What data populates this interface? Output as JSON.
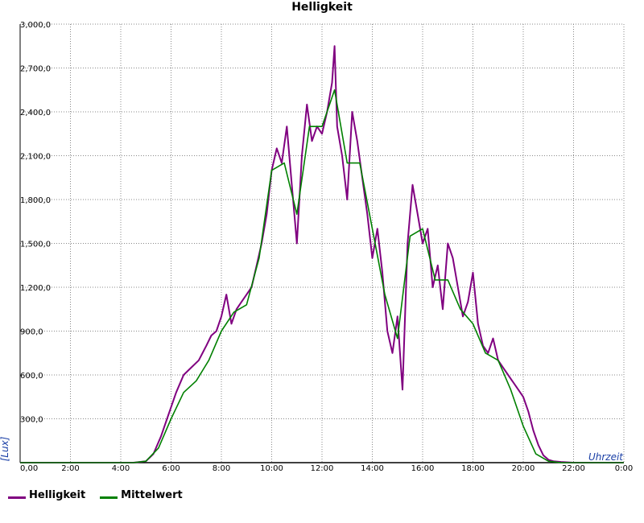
{
  "chart_data": {
    "type": "line",
    "title": "Helligkeit",
    "ylabel": "[Lux]",
    "xlabel": "Uhrzeit",
    "x_unit": "hours",
    "xlim": [
      0,
      24
    ],
    "ylim": [
      0,
      3000
    ],
    "x_ticks": [
      "0,00",
      "2:00",
      "4:00",
      "6:00",
      "8:00",
      "10:00",
      "12:00",
      "14:00",
      "16:00",
      "18:00",
      "20:00",
      "22:00",
      "0:00"
    ],
    "y_ticks": [
      "0,00",
      "300,0",
      "600,0",
      "900,0",
      "1,200,0",
      "1,500,0",
      "1,800,0",
      "2,100,0",
      "2,400,0",
      "2,700,0",
      "3,000,0"
    ],
    "grid": true,
    "legend_position": "bottom-left",
    "series": [
      {
        "name": "Helligkeit",
        "color": "#800080",
        "x": [
          0,
          4.5,
          5.0,
          5.3,
          5.6,
          5.9,
          6.2,
          6.5,
          6.8,
          7.1,
          7.4,
          7.6,
          7.8,
          8.0,
          8.2,
          8.4,
          8.6,
          8.8,
          9.0,
          9.2,
          9.4,
          9.6,
          9.8,
          10.0,
          10.2,
          10.4,
          10.6,
          10.8,
          11.0,
          11.2,
          11.4,
          11.6,
          11.8,
          12.0,
          12.2,
          12.4,
          12.5,
          12.6,
          12.8,
          13.0,
          13.2,
          13.4,
          13.6,
          13.8,
          14.0,
          14.2,
          14.4,
          14.6,
          14.8,
          15.0,
          15.2,
          15.4,
          15.6,
          15.8,
          16.0,
          16.2,
          16.4,
          16.6,
          16.8,
          17.0,
          17.2,
          17.4,
          17.6,
          17.8,
          18.0,
          18.2,
          18.4,
          18.6,
          18.8,
          19.0,
          19.2,
          19.4,
          19.6,
          19.8,
          20.0,
          20.2,
          20.4,
          20.6,
          20.8,
          21.0,
          21.2,
          21.5,
          22.0,
          24
        ],
        "y": [
          0,
          0,
          10,
          60,
          180,
          330,
          480,
          600,
          650,
          700,
          800,
          870,
          900,
          1000,
          1150,
          950,
          1050,
          1100,
          1150,
          1200,
          1350,
          1500,
          1700,
          2000,
          2150,
          2050,
          2300,
          1900,
          1500,
          2100,
          2450,
          2200,
          2300,
          2250,
          2400,
          2600,
          2850,
          2300,
          2100,
          1800,
          2400,
          2200,
          1950,
          1700,
          1400,
          1600,
          1300,
          900,
          750,
          1000,
          500,
          1500,
          1900,
          1700,
          1500,
          1600,
          1200,
          1350,
          1050,
          1500,
          1400,
          1200,
          1000,
          1100,
          1300,
          950,
          800,
          750,
          850,
          700,
          650,
          600,
          550,
          500,
          450,
          350,
          220,
          120,
          50,
          20,
          10,
          5,
          0,
          0
        ]
      },
      {
        "name": "Mittelwert",
        "color": "#008000",
        "x": [
          0,
          4.5,
          5.0,
          5.5,
          6.0,
          6.5,
          7.0,
          7.5,
          8.0,
          8.5,
          9.0,
          9.5,
          10.0,
          10.5,
          11.0,
          11.5,
          12.0,
          12.5,
          13.0,
          13.5,
          14.0,
          14.5,
          15.0,
          15.5,
          16.0,
          16.5,
          17.0,
          17.5,
          18.0,
          18.5,
          19.0,
          19.5,
          20.0,
          20.5,
          21.0,
          21.5,
          22.0,
          24
        ],
        "y": [
          0,
          0,
          10,
          100,
          300,
          480,
          560,
          700,
          900,
          1030,
          1080,
          1400,
          2000,
          2050,
          1700,
          2300,
          2300,
          2550,
          2050,
          2050,
          1600,
          1150,
          850,
          1550,
          1600,
          1250,
          1250,
          1050,
          950,
          750,
          700,
          500,
          250,
          60,
          10,
          0,
          0,
          0
        ]
      }
    ]
  }
}
